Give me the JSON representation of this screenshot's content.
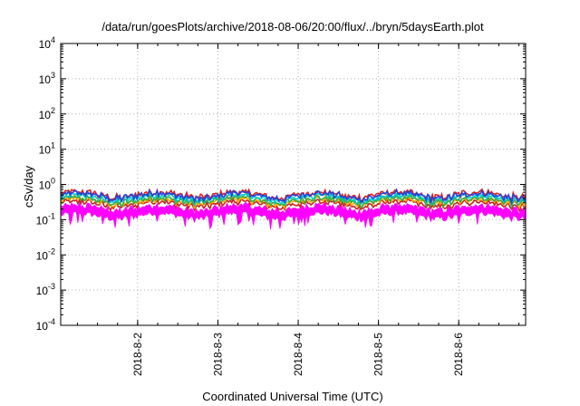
{
  "chart_data": {
    "type": "line",
    "title": "/data/run/goesPlots/archive/2018-08-06/20:00/flux/../bryn/5daysEarth.plot",
    "xlabel": "Coordinated Universal Time (UTC)",
    "ylabel": "cSv/day",
    "yscale": "log",
    "ylim": [
      0.0001,
      10000
    ],
    "xlim": [
      "2018-08-01 01:00",
      "2018-08-06 20:00"
    ],
    "grid": true,
    "y_ticks": [
      {
        "base": "10",
        "exp": "-4"
      },
      {
        "base": "10",
        "exp": "-3"
      },
      {
        "base": "10",
        "exp": "-2"
      },
      {
        "base": "10",
        "exp": "-1"
      },
      {
        "base": "10",
        "exp": "0"
      },
      {
        "base": "10",
        "exp": "1"
      },
      {
        "base": "10",
        "exp": "2"
      },
      {
        "base": "10",
        "exp": "3"
      },
      {
        "base": "10",
        "exp": "4"
      }
    ],
    "x_ticks": [
      "2018-8-2",
      "2018-8-3",
      "2018-8-4",
      "2018-8-5",
      "2018-8-6"
    ],
    "series": [
      {
        "color": "#ff00ff",
        "base": 0.22,
        "fill_to": 0.13
      },
      {
        "color": "#cc2222",
        "base": 0.28
      },
      {
        "color": "#ffaa00",
        "base": 0.33
      },
      {
        "color": "#33aa44",
        "base": 0.36
      },
      {
        "color": "#00cccc",
        "base": 0.42
      },
      {
        "color": "#dd2222",
        "base": 0.52
      },
      {
        "color": "#2244dd",
        "base": 0.48
      }
    ]
  }
}
